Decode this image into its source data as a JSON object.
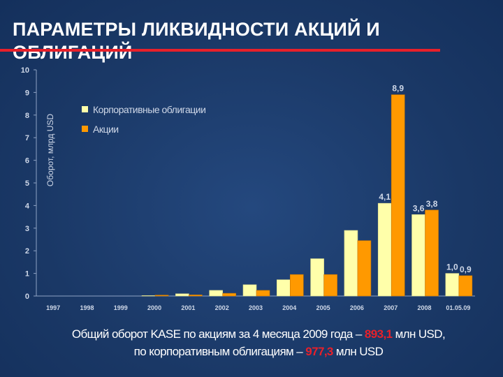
{
  "title": "ПАРАМЕТРЫ ЛИКВИДНОСТИ АКЦИЙ И ОБЛИГАЦИЙ",
  "footer": {
    "line1_prefix": "Общий оборот KASE по акциям за 4 месяца 2009 года –",
    "line1_value": "893,1",
    "line1_suffix": "млн USD,",
    "line2_prefix": "по корпоративным облигациям –",
    "line2_value": "977,3",
    "line2_suffix": "млн USD"
  },
  "colors": {
    "background": "#1b3a6b",
    "accent_red": "#e8202a",
    "bonds": "#ffffaa",
    "stocks": "#ff9900",
    "axis_text": "#cfd8e8"
  },
  "chart_data": {
    "type": "bar",
    "ylabel": "Оборот, млрд USD",
    "ylim": [
      0,
      10
    ],
    "yticks": [
      0,
      1,
      2,
      3,
      4,
      5,
      6,
      7,
      8,
      9,
      10
    ],
    "legend_position": "top-left",
    "categories": [
      "1997",
      "1998",
      "1999",
      "2000",
      "2001",
      "2002",
      "2003",
      "2004",
      "2005",
      "2006",
      "2007",
      "2008",
      "01.05.09"
    ],
    "series": [
      {
        "name": "Корпоративные облигации",
        "color": "#ffffaa",
        "values": [
          0,
          0,
          0,
          0.02,
          0.1,
          0.25,
          0.5,
          0.72,
          1.65,
          2.9,
          4.1,
          3.6,
          1.0
        ],
        "labels": [
          "",
          "",
          "",
          "",
          "",
          "",
          "",
          "",
          "",
          "",
          "4,1",
          "3,6",
          "1,0"
        ]
      },
      {
        "name": "Акции",
        "color": "#ff9900",
        "values": [
          0,
          0,
          0,
          0.04,
          0.05,
          0.12,
          0.25,
          0.95,
          0.95,
          2.45,
          8.9,
          3.8,
          0.9
        ],
        "labels": [
          "",
          "",
          "",
          "",
          "",
          "",
          "",
          "",
          "",
          "",
          "8,9",
          "3,8",
          "0,9"
        ]
      }
    ]
  }
}
